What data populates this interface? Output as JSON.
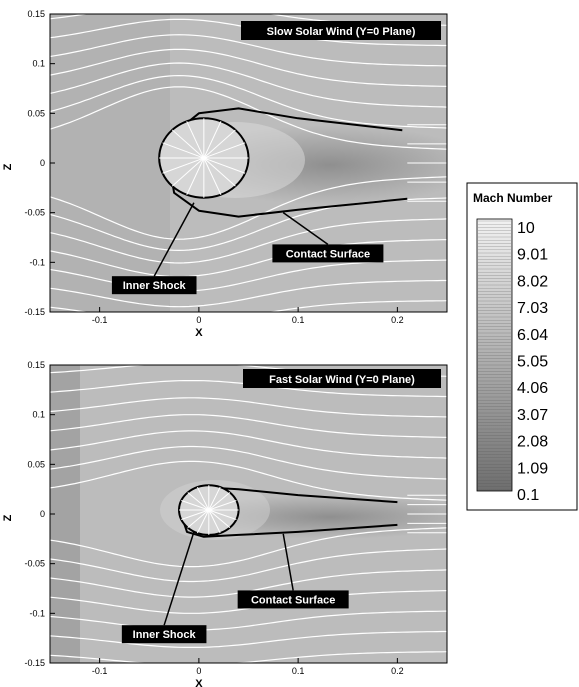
{
  "chart_data": [
    {
      "type": "heatmap",
      "title": "Slow Solar Wind (Y=0 Plane)",
      "xlabel": "X",
      "ylabel": "Z",
      "xlim": [
        -0.15,
        0.25
      ],
      "ylim": [
        -0.15,
        0.15
      ],
      "x_ticks": [
        "-0.1",
        "0",
        "0.1",
        "0.2"
      ],
      "y_ticks": [
        "0.15",
        "0.1",
        "0.05",
        "0",
        "-0.05",
        "-0.1",
        "-0.15"
      ],
      "inner_shock": {
        "cx": 0.005,
        "cz": 0.005,
        "rx": 0.045,
        "rz": 0.04
      },
      "contact_surface": {
        "nose_x": -0.03,
        "upper": [
          [
            -0.03,
            0.0
          ],
          [
            -0.025,
            0.03
          ],
          [
            0.0,
            0.05
          ],
          [
            0.04,
            0.055
          ],
          [
            0.1,
            0.045
          ],
          [
            0.205,
            0.033
          ]
        ],
        "lower": [
          [
            -0.03,
            0.0
          ],
          [
            -0.025,
            -0.03
          ],
          [
            0.0,
            -0.048
          ],
          [
            0.04,
            -0.054
          ],
          [
            0.1,
            -0.047
          ],
          [
            0.21,
            -0.036
          ]
        ]
      },
      "annotations": [
        {
          "text": "Inner Shock",
          "x": -0.045,
          "z": -0.123,
          "target_x": -0.005,
          "target_z": -0.04
        },
        {
          "text": "Contact Surface",
          "x": 0.13,
          "z": -0.091,
          "target_x": 0.085,
          "target_z": -0.05
        }
      ]
    },
    {
      "type": "heatmap",
      "title": "Fast Solar Wind (Y=0 Plane)",
      "xlabel": "X",
      "ylabel": "Z",
      "xlim": [
        -0.15,
        0.25
      ],
      "ylim": [
        -0.15,
        0.15
      ],
      "x_ticks": [
        "-0.1",
        "0",
        "0.1",
        "0.2"
      ],
      "y_ticks": [
        "0.15",
        "0.1",
        "0.05",
        "0",
        "-0.05",
        "-0.1",
        "-0.15"
      ],
      "inner_shock": {
        "cx": 0.01,
        "cz": 0.004,
        "rx": 0.03,
        "rz": 0.025
      },
      "contact_surface": {
        "nose_x": -0.018,
        "upper": [
          [
            -0.018,
            0.0
          ],
          [
            -0.012,
            0.018
          ],
          [
            0.005,
            0.027
          ],
          [
            0.04,
            0.025
          ],
          [
            0.1,
            0.019
          ],
          [
            0.2,
            0.012
          ]
        ],
        "lower": [
          [
            -0.018,
            0.0
          ],
          [
            -0.012,
            -0.018
          ],
          [
            0.005,
            -0.023
          ],
          [
            0.04,
            -0.021
          ],
          [
            0.1,
            -0.018
          ],
          [
            0.2,
            -0.011
          ]
        ]
      },
      "annotations": [
        {
          "text": "Inner Shock",
          "x": -0.035,
          "z": -0.121,
          "target_x": -0.005,
          "target_z": -0.018
        },
        {
          "text": "Contact Surface",
          "x": 0.095,
          "z": -0.086,
          "target_x": 0.085,
          "target_z": -0.02
        }
      ]
    }
  ],
  "legend": {
    "title": "Mach Number",
    "levels": [
      "10",
      "9.01",
      "8.02",
      "7.03",
      "6.04",
      "5.05",
      "4.06",
      "3.07",
      "2.08",
      "1.09",
      "0.1"
    ],
    "min": 0.1,
    "max": 10,
    "color_min": "#6e6e6e",
    "color_max": "#f2f2f2"
  },
  "colors": {
    "field_background": "#b4b4b4",
    "streamline": "#ffffff",
    "contact_surface": "#000000",
    "label_box": "#000000"
  }
}
